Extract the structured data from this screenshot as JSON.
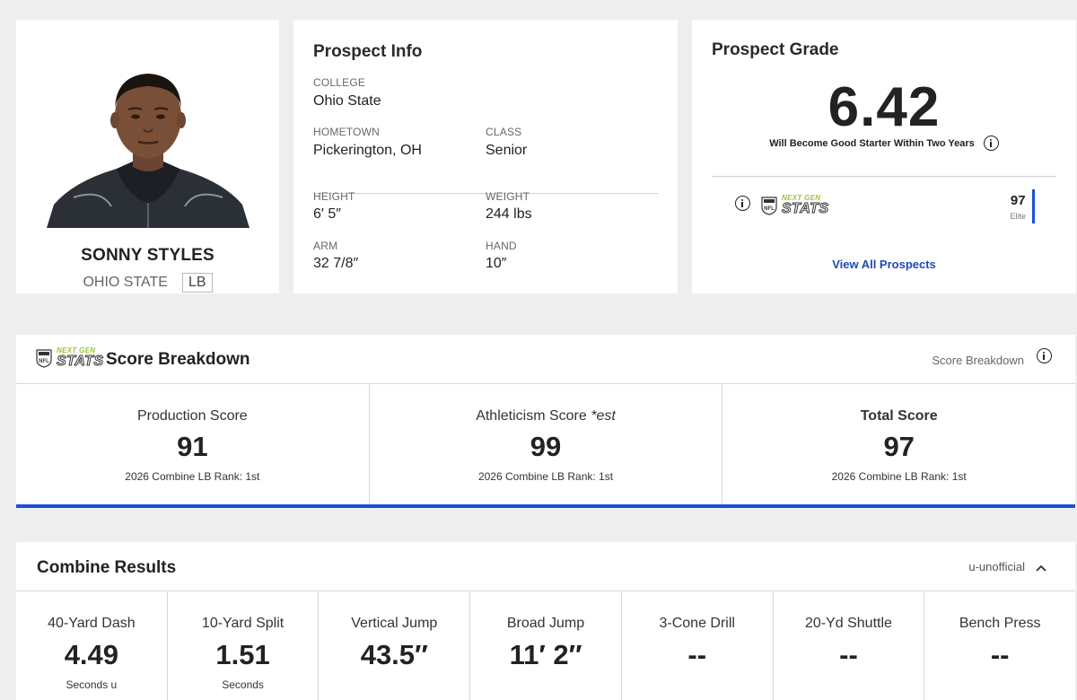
{
  "player": {
    "name": "SONNY STYLES",
    "school": "OHIO STATE",
    "position": "LB"
  },
  "prospect_info": {
    "title": "Prospect Info",
    "college_label": "COLLEGE",
    "college": "Ohio State",
    "hometown_label": "HOMETOWN",
    "hometown": "Pickerington, OH",
    "class_label": "CLASS",
    "class": "Senior",
    "height_label": "HEIGHT",
    "height": "6′ 5″",
    "weight_label": "WEIGHT",
    "weight": "244 lbs",
    "arm_label": "ARM",
    "arm": "32 7/8″",
    "hand_label": "HAND",
    "hand": "10″"
  },
  "prospect_grade": {
    "title": "Prospect Grade",
    "grade": "6.42",
    "description": "Will Become Good Starter Within Two Years",
    "ngs_score": "97",
    "ngs_label": "Elite",
    "view_all": "View All Prospects"
  },
  "ngs_logo": {
    "top": "NEXT GEN",
    "bottom": "STATS"
  },
  "score_breakdown": {
    "title": "Score Breakdown",
    "right_label": "Score Breakdown",
    "columns": [
      {
        "label": "Production Score",
        "value": "91",
        "rank": "2026 Combine LB Rank: 1st"
      },
      {
        "label": "Athleticism Score ",
        "label_suffix": "*est",
        "value": "99",
        "rank": "2026 Combine LB Rank: 1st"
      },
      {
        "label": "Total Score",
        "value": "97",
        "rank": "2026 Combine LB Rank: 1st"
      }
    ]
  },
  "combine": {
    "title": "Combine Results",
    "status": "u-unofficial",
    "drills": [
      {
        "label": "40-Yard Dash",
        "value": "4.49",
        "unit": "Seconds u"
      },
      {
        "label": "10-Yard Split",
        "value": "1.51",
        "unit": "Seconds"
      },
      {
        "label": "Vertical Jump",
        "value": "43.5″",
        "unit": ""
      },
      {
        "label": "Broad Jump",
        "value": "11′ 2″",
        "unit": ""
      },
      {
        "label": "3-Cone Drill",
        "value": "--",
        "unit": ""
      },
      {
        "label": "20-Yd Shuttle",
        "value": "--",
        "unit": ""
      },
      {
        "label": "Bench Press",
        "value": "--",
        "unit": ""
      }
    ]
  },
  "colors": {
    "accent_blue": "#1d4ed8",
    "link_blue": "#1d4ab5",
    "ngs_green": "#9ac53b",
    "background": "#eeeeee"
  }
}
